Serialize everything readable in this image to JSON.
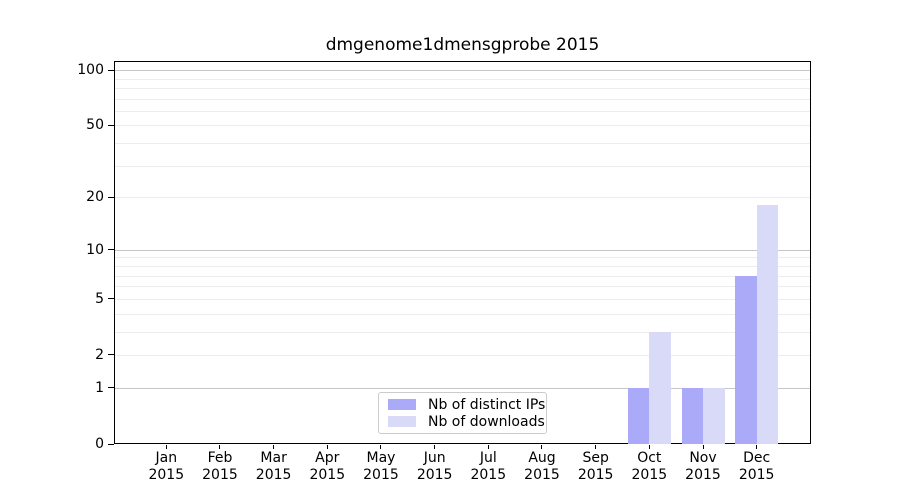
{
  "page": {
    "background": "#ffffff"
  },
  "chart_data": {
    "type": "bar",
    "title": "dmgenome1dmensgprobe 2015",
    "categories": [
      "Jan",
      "Feb",
      "Mar",
      "Apr",
      "May",
      "Jun",
      "Jul",
      "Aug",
      "Sep",
      "Oct",
      "Nov",
      "Dec"
    ],
    "x_sublabel": "2015",
    "series": [
      {
        "name": "Nb of distinct IPs",
        "color": "#aaaaf8",
        "values": [
          0,
          0,
          0,
          0,
          0,
          0,
          0,
          0,
          0,
          1,
          1,
          7
        ]
      },
      {
        "name": "Nb of downloads",
        "color": "#d9d9f8",
        "values": [
          0,
          0,
          0,
          0,
          0,
          0,
          0,
          0,
          0,
          3,
          1,
          18
        ]
      }
    ],
    "y_scale": "log1p",
    "y_ticks": [
      0,
      1,
      2,
      5,
      10,
      20,
      50,
      100
    ],
    "y_gridlines_major": [
      1,
      10,
      100
    ],
    "y_gridlines_minor": [
      2,
      3,
      4,
      5,
      6,
      7,
      8,
      9,
      20,
      30,
      40,
      50,
      60,
      70,
      80,
      90
    ],
    "ylim": [
      0,
      112
    ],
    "grid": true,
    "legend_position": "bottom-center-inside"
  },
  "legend": {
    "items": [
      {
        "label": "Nb of distinct IPs",
        "color": "#aaaaf8"
      },
      {
        "label": "Nb of downloads",
        "color": "#d9d9f8"
      }
    ]
  },
  "colors": {
    "grid_major": "#c6c6c6",
    "grid_minor": "#ececec",
    "spine": "#000000",
    "text": "#000000",
    "background": "#ffffff"
  }
}
